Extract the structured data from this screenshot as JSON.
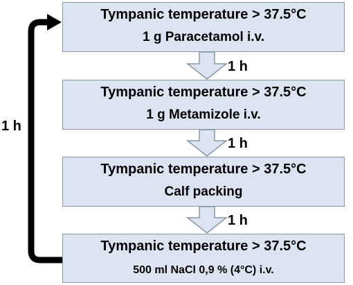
{
  "steps": [
    {
      "condition": "Tympanic temperature  > 37.5°C",
      "action": "1 g Paracetamol i.v."
    },
    {
      "condition": "Tympanic temperature  > 37.5°C",
      "action": "1 g Metamizole i.v."
    },
    {
      "condition": "Tympanic temperature  > 37.5°C",
      "action": "Calf packing"
    },
    {
      "condition": "Tympanic temperature  > 37.5°C",
      "action": "500 ml NaCl 0,9 % (4°C) i.v."
    }
  ],
  "intervals": [
    "1 h",
    "1 h",
    "1 h"
  ],
  "loop": {
    "label": "1 h"
  },
  "colors": {
    "box_fill": "#dbe4f0",
    "box_border": "#8a96a6",
    "arrow_fill": "#dbe4f0",
    "loop_arrow": "#000000"
  }
}
